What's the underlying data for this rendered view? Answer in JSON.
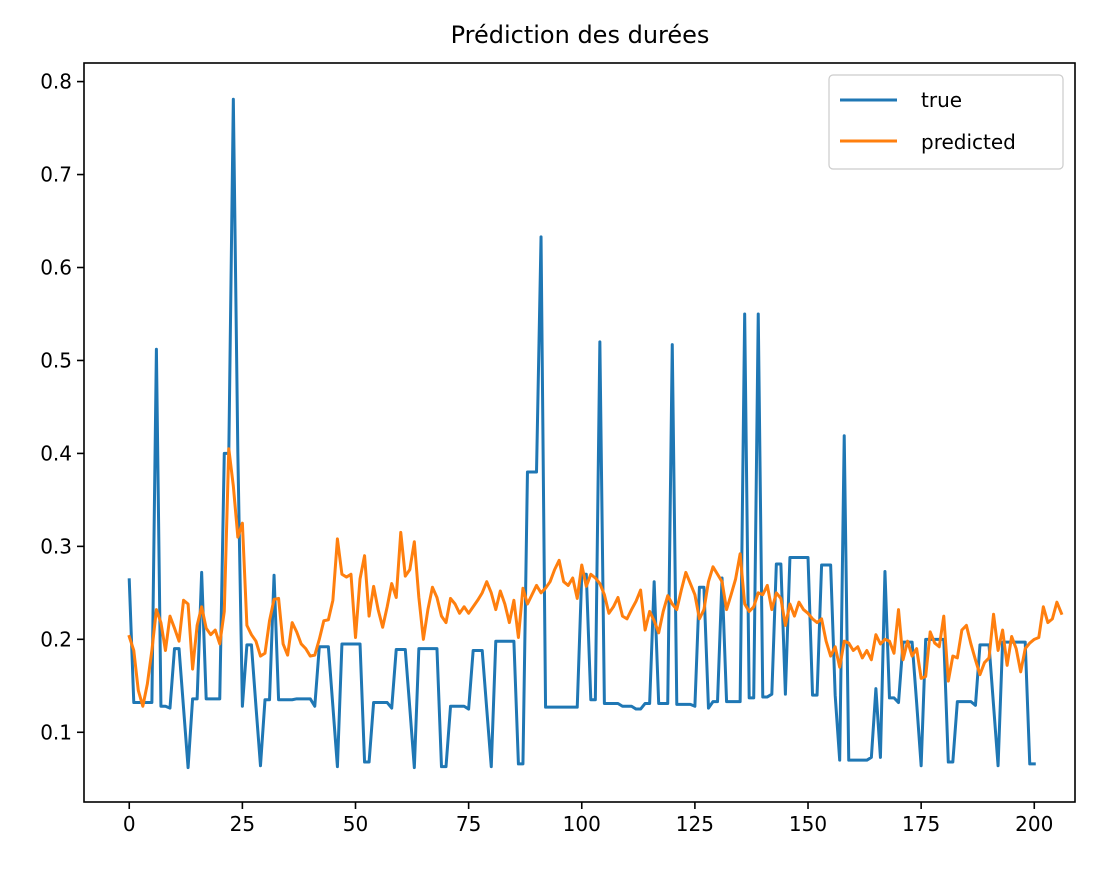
{
  "chart_data": {
    "type": "line",
    "title": "Prédiction des durées",
    "xlabel": "",
    "ylabel": "",
    "xlim": [
      -10,
      209
    ],
    "ylim": [
      0.025,
      0.82
    ],
    "x_ticks": [
      0,
      25,
      50,
      75,
      100,
      125,
      150,
      175,
      200
    ],
    "y_ticks": [
      0.1,
      0.2,
      0.3,
      0.4,
      0.5,
      0.6,
      0.7,
      0.8
    ],
    "y_tick_labels": [
      "0.1",
      "0.2",
      "0.3",
      "0.4",
      "0.5",
      "0.6",
      "0.7",
      "0.8"
    ],
    "grid": false,
    "legend": {
      "position": "top-right"
    },
    "series": [
      {
        "name": "true",
        "color": "#1f77b4",
        "values": [
          0.264,
          0.132,
          0.132,
          0.132,
          0.132,
          0.132,
          0.512,
          0.128,
          0.128,
          0.126,
          0.19,
          0.19,
          0.126,
          0.062,
          0.136,
          0.136,
          0.272,
          0.136,
          0.136,
          0.136,
          0.136,
          0.4,
          0.4,
          0.781,
          0.4,
          0.128,
          0.194,
          0.194,
          0.128,
          0.064,
          0.135,
          0.135,
          0.269,
          0.135,
          0.135,
          0.135,
          0.135,
          0.136,
          0.136,
          0.136,
          0.136,
          0.128,
          0.192,
          0.192,
          0.192,
          0.128,
          0.063,
          0.195,
          0.195,
          0.195,
          0.195,
          0.195,
          0.068,
          0.068,
          0.132,
          0.132,
          0.132,
          0.132,
          0.126,
          0.189,
          0.189,
          0.189,
          0.126,
          0.062,
          0.19,
          0.19,
          0.19,
          0.19,
          0.19,
          0.063,
          0.063,
          0.128,
          0.128,
          0.128,
          0.128,
          0.125,
          0.188,
          0.188,
          0.188,
          0.125,
          0.063,
          0.198,
          0.198,
          0.198,
          0.198,
          0.198,
          0.066,
          0.066,
          0.38,
          0.38,
          0.38,
          0.633,
          0.127,
          0.127,
          0.127,
          0.127,
          0.127,
          0.127,
          0.127,
          0.127,
          0.27,
          0.27,
          0.135,
          0.135,
          0.52,
          0.131,
          0.131,
          0.131,
          0.131,
          0.128,
          0.128,
          0.128,
          0.125,
          0.125,
          0.131,
          0.131,
          0.262,
          0.131,
          0.131,
          0.131,
          0.517,
          0.13,
          0.13,
          0.13,
          0.13,
          0.128,
          0.256,
          0.256,
          0.126,
          0.133,
          0.133,
          0.266,
          0.133,
          0.133,
          0.133,
          0.133,
          0.55,
          0.137,
          0.137,
          0.55,
          0.138,
          0.138,
          0.141,
          0.281,
          0.281,
          0.141,
          0.288,
          0.288,
          0.288,
          0.288,
          0.288,
          0.14,
          0.14,
          0.28,
          0.28,
          0.28,
          0.14,
          0.07,
          0.419,
          0.07,
          0.07,
          0.07,
          0.07,
          0.07,
          0.073,
          0.147,
          0.073,
          0.273,
          0.137,
          0.137,
          0.132,
          0.197,
          0.197,
          0.197,
          0.132,
          0.064,
          0.2,
          0.2,
          0.2,
          0.2,
          0.2,
          0.068,
          0.068,
          0.133,
          0.133,
          0.133,
          0.133,
          0.129,
          0.194,
          0.194,
          0.194,
          0.129,
          0.064,
          0.197,
          0.197,
          0.197,
          0.197,
          0.197,
          0.197,
          0.066,
          0.066
        ]
      },
      {
        "name": "predicted",
        "color": "#ff7f0e",
        "values": [
          0.203,
          0.188,
          0.145,
          0.128,
          0.152,
          0.188,
          0.232,
          0.218,
          0.188,
          0.225,
          0.212,
          0.198,
          0.242,
          0.238,
          0.168,
          0.215,
          0.235,
          0.212,
          0.205,
          0.21,
          0.195,
          0.23,
          0.405,
          0.365,
          0.31,
          0.325,
          0.215,
          0.205,
          0.198,
          0.182,
          0.185,
          0.22,
          0.243,
          0.244,
          0.195,
          0.183,
          0.218,
          0.208,
          0.195,
          0.19,
          0.182,
          0.183,
          0.2,
          0.22,
          0.221,
          0.242,
          0.308,
          0.27,
          0.267,
          0.27,
          0.202,
          0.265,
          0.29,
          0.225,
          0.257,
          0.232,
          0.213,
          0.235,
          0.26,
          0.245,
          0.315,
          0.268,
          0.275,
          0.305,
          0.245,
          0.2,
          0.232,
          0.256,
          0.245,
          0.225,
          0.218,
          0.244,
          0.238,
          0.228,
          0.235,
          0.228,
          0.235,
          0.242,
          0.25,
          0.262,
          0.25,
          0.232,
          0.252,
          0.238,
          0.218,
          0.242,
          0.202,
          0.255,
          0.238,
          0.248,
          0.258,
          0.25,
          0.255,
          0.262,
          0.275,
          0.285,
          0.262,
          0.258,
          0.266,
          0.244,
          0.28,
          0.257,
          0.27,
          0.266,
          0.26,
          0.248,
          0.228,
          0.235,
          0.245,
          0.225,
          0.222,
          0.232,
          0.241,
          0.253,
          0.21,
          0.23,
          0.22,
          0.207,
          0.23,
          0.247,
          0.238,
          0.232,
          0.253,
          0.272,
          0.26,
          0.248,
          0.222,
          0.232,
          0.262,
          0.278,
          0.27,
          0.262,
          0.232,
          0.248,
          0.265,
          0.292,
          0.238,
          0.23,
          0.235,
          0.25,
          0.248,
          0.258,
          0.232,
          0.25,
          0.244,
          0.215,
          0.238,
          0.225,
          0.24,
          0.232,
          0.228,
          0.222,
          0.218,
          0.222,
          0.198,
          0.182,
          0.192,
          0.17,
          0.198,
          0.196,
          0.188,
          0.192,
          0.18,
          0.188,
          0.178,
          0.205,
          0.195,
          0.2,
          0.198,
          0.185,
          0.232,
          0.178,
          0.198,
          0.182,
          0.19,
          0.158,
          0.16,
          0.208,
          0.196,
          0.192,
          0.225,
          0.155,
          0.182,
          0.18,
          0.21,
          0.215,
          0.195,
          0.178,
          0.162,
          0.175,
          0.18,
          0.227,
          0.188,
          0.21,
          0.172,
          0.203,
          0.19,
          0.165,
          0.19,
          0.196,
          0.2,
          0.202,
          0.235,
          0.218,
          0.222,
          0.24,
          0.228
        ]
      }
    ]
  }
}
